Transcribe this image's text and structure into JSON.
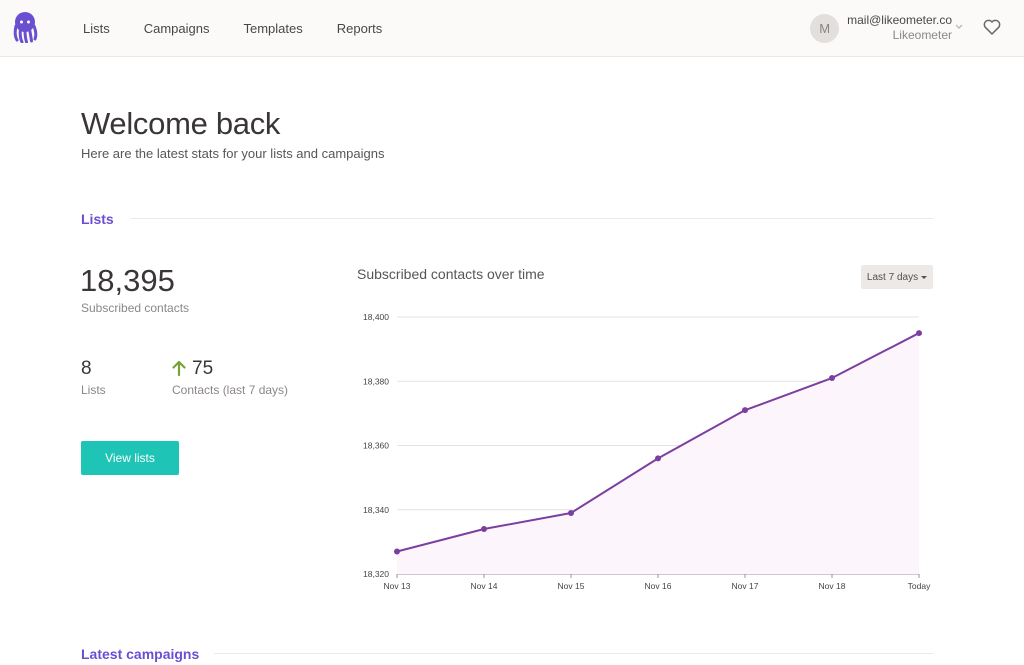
{
  "header": {
    "logo_icon": "octopus-logo-icon",
    "nav": [
      "Lists",
      "Campaigns",
      "Templates",
      "Reports"
    ],
    "account": {
      "avatar_initial": "M",
      "email": "mail@likeometer.co",
      "org": "Likeometer"
    },
    "favorites_icon": "heart-icon"
  },
  "welcome": {
    "title": "Welcome back",
    "subtitle": "Here are the latest stats for your lists and campaigns"
  },
  "lists_section": {
    "label": "Lists",
    "subscribed_value": "18,395",
    "subscribed_label": "Subscribed contacts",
    "lists_value": "8",
    "lists_label": "Lists",
    "contacts_delta": "75",
    "contacts_delta_label": "Contacts (last 7 days)",
    "view_button": "View lists"
  },
  "chart_panel": {
    "title": "Subscribed contacts over time",
    "range_button": "Last 7 days"
  },
  "campaigns_section": {
    "label": "Latest campaigns"
  },
  "colors": {
    "accent": "#6b4fd1",
    "line": "#7b3fa0",
    "fill": "#fcf6fc",
    "button": "#1ec5b6",
    "up_arrow": "#79a23a"
  },
  "chart_data": {
    "type": "area",
    "title": "Subscribed contacts over time",
    "categories": [
      "Nov 13",
      "Nov 14",
      "Nov 15",
      "Nov 16",
      "Nov 17",
      "Nov 18",
      "Today"
    ],
    "series": [
      {
        "values": [
          18327,
          18334,
          18339,
          18356,
          18371,
          18381,
          18395
        ]
      }
    ],
    "ylim": [
      18320,
      18400
    ],
    "yticks": [
      18320,
      18340,
      18360,
      18380,
      18400
    ],
    "ytick_labels": [
      "18,320",
      "18,340",
      "18,360",
      "18,380",
      "18,400"
    ],
    "grid": true,
    "legend": "none"
  }
}
